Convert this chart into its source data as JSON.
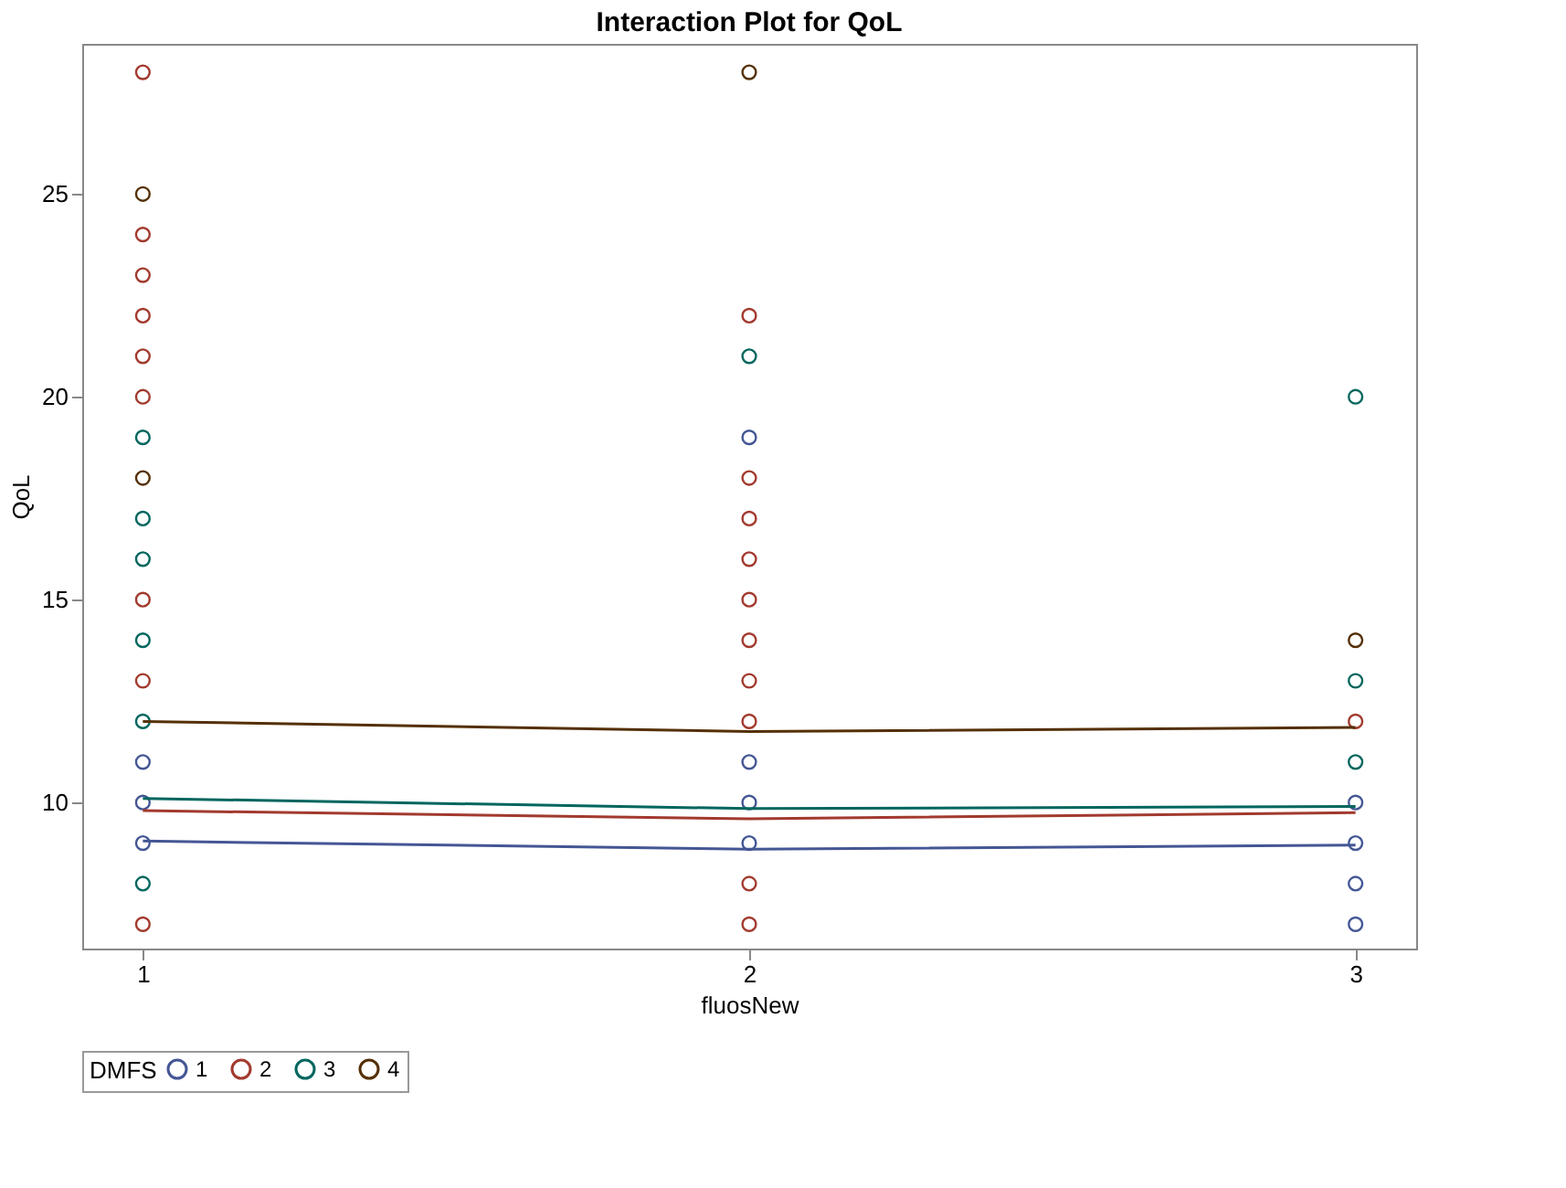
{
  "chart_data": {
    "type": "scatter",
    "title": "Interaction Plot for QoL",
    "xlabel": "fluosNew",
    "ylabel": "QoL",
    "legend_title": "DMFS",
    "xlim": [
      0.9,
      3.1
    ],
    "xticks": [
      1,
      2,
      3
    ],
    "ylim": [
      6.4,
      28.7
    ],
    "yticks": [
      10,
      15,
      20,
      25
    ],
    "grid": false,
    "legend": "bottom",
    "marker": "circle",
    "series": [
      {
        "name": "1",
        "color": "#445694",
        "x": [
          1,
          1,
          1,
          2,
          2,
          2,
          2,
          3,
          3,
          3,
          3
        ],
        "values": [
          11,
          10,
          9,
          19,
          11,
          10,
          9,
          10,
          9,
          8,
          7
        ]
      },
      {
        "name": "2",
        "color": "#a23a2e",
        "x": [
          1,
          1,
          1,
          1,
          1,
          1,
          1,
          1,
          1,
          2,
          2,
          2,
          2,
          2,
          2,
          2,
          2,
          2,
          2,
          3
        ],
        "values": [
          28,
          24,
          23,
          22,
          21,
          20,
          15,
          13,
          7,
          22,
          18,
          17,
          16,
          15,
          14,
          13,
          12,
          8,
          7,
          12
        ]
      },
      {
        "name": "3",
        "color": "#01665e",
        "x": [
          1,
          1,
          1,
          1,
          1,
          1,
          2,
          3,
          3,
          3
        ],
        "values": [
          19,
          17,
          16,
          14,
          12,
          8,
          21,
          20,
          13,
          11
        ]
      },
      {
        "name": "4",
        "color": "#543005",
        "x": [
          1,
          1,
          2,
          3
        ],
        "values": [
          25,
          18,
          28,
          14
        ]
      },
      {
        "color": "#445694",
        "type": "line",
        "marker": "none",
        "line_style": "solid",
        "x": [
          1,
          2,
          3
        ],
        "values": [
          9.05,
          8.85,
          8.95
        ]
      },
      {
        "color": "#a23a2e",
        "type": "line",
        "marker": "none",
        "line_style": "solid",
        "x": [
          1,
          2,
          3
        ],
        "values": [
          9.8,
          9.6,
          9.75
        ]
      },
      {
        "color": "#01665e",
        "type": "line",
        "marker": "none",
        "line_style": "solid",
        "x": [
          1,
          2,
          3
        ],
        "values": [
          10.1,
          9.85,
          9.9
        ]
      },
      {
        "color": "#543005",
        "type": "line",
        "marker": "none",
        "line_style": "solid",
        "x": [
          1,
          2,
          3
        ],
        "values": [
          12.0,
          11.75,
          11.85
        ]
      }
    ]
  }
}
